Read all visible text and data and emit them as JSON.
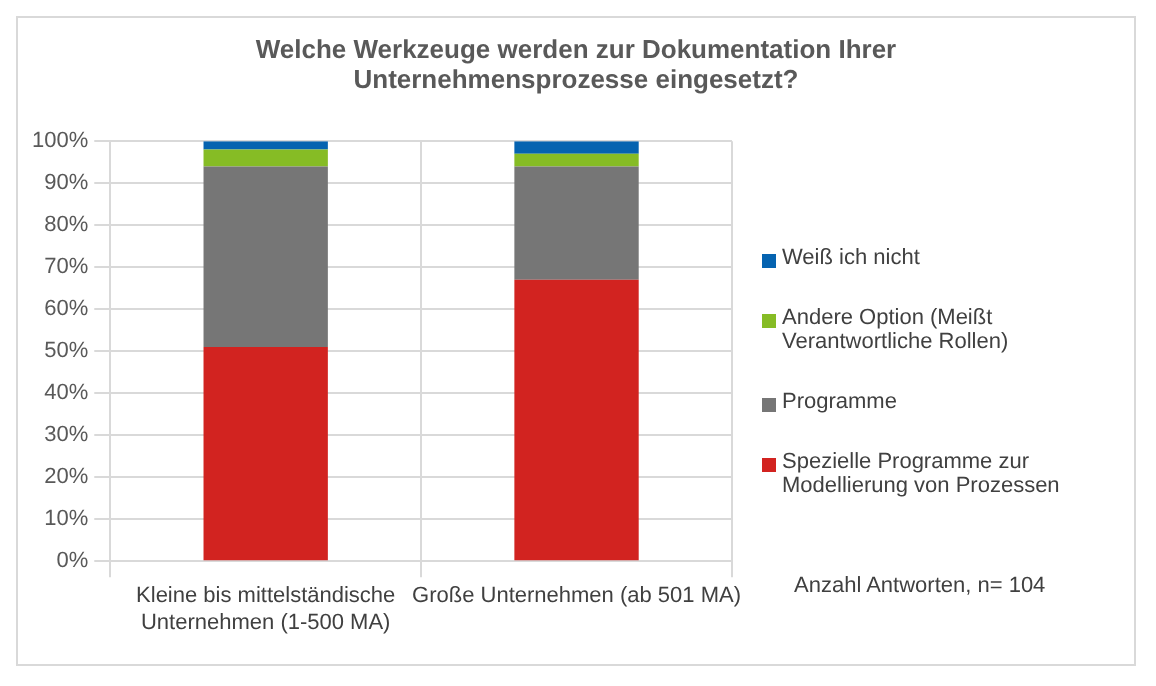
{
  "chart_data": {
    "type": "bar",
    "title": "Welche Werkzeuge werden zur Dokumentation Ihrer Unternehmensprozesse eingesetzt?",
    "categories": [
      "Kleine bis mittelständische Unternehmen (1-500 MA)",
      "Große Unternehmen (ab 501 MA)"
    ],
    "series": [
      {
        "name": "Spezielle Programme zur Modellierung von Prozessen",
        "color": "#d22320",
        "values": [
          51,
          67
        ]
      },
      {
        "name": "Programme",
        "color": "#767676",
        "values": [
          43,
          27
        ]
      },
      {
        "name": "Andere Option (Meißt Verantwortliche Rollen)",
        "color": "#86bc25",
        "values": [
          4,
          3
        ]
      },
      {
        "name": "Weiß ich nicht",
        "color": "#0563b0",
        "values": [
          2,
          3
        ]
      }
    ],
    "stacked": true,
    "ylim": [
      0,
      100
    ],
    "yticks": [
      {
        "value": 0,
        "label": "0%"
      },
      {
        "value": 10,
        "label": "10%"
      },
      {
        "value": 20,
        "label": "20%"
      },
      {
        "value": 30,
        "label": "30%"
      },
      {
        "value": 40,
        "label": "40%"
      },
      {
        "value": 50,
        "label": "50%"
      },
      {
        "value": 60,
        "label": "60%"
      },
      {
        "value": 70,
        "label": "70%"
      },
      {
        "value": 80,
        "label": "80%"
      },
      {
        "value": 90,
        "label": "90%"
      },
      {
        "value": 100,
        "label": "100%"
      }
    ],
    "grid": true,
    "legend": "right",
    "annotations": [
      "Anzahl Antworten, n= 104"
    ]
  }
}
